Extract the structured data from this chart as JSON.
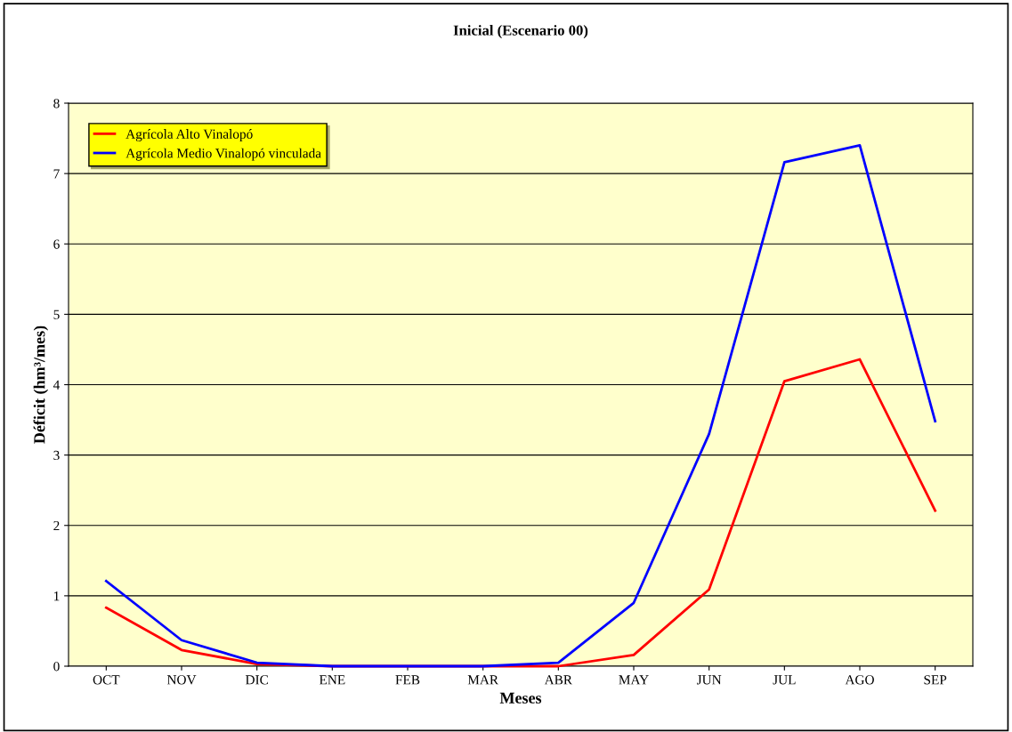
{
  "chart_data": {
    "type": "line",
    "title": "Inicial (Escenario 00)",
    "xlabel": "Meses",
    "ylabel": "Déficit (hm³/mes)",
    "categories": [
      "OCT",
      "NOV",
      "DIC",
      "ENE",
      "FEB",
      "MAR",
      "ABR",
      "MAY",
      "JUN",
      "JUL",
      "AGO",
      "SEP"
    ],
    "series": [
      {
        "name": "Agrícola Alto Vinalopó",
        "color": "#ff0000",
        "values": [
          0.83,
          0.23,
          0.03,
          0,
          0,
          0,
          0,
          0.16,
          1.09,
          4.05,
          4.36,
          2.21
        ]
      },
      {
        "name": "Agrícola Medio Vinalopó vinculada",
        "color": "#0000ff",
        "values": [
          1.21,
          0.37,
          0.05,
          0,
          0,
          0,
          0.05,
          0.9,
          3.3,
          7.16,
          7.4,
          3.48
        ]
      }
    ],
    "ylim": [
      0,
      8
    ],
    "yticks": [
      0,
      1,
      2,
      3,
      4,
      5,
      6,
      7,
      8
    ],
    "grid": "y",
    "legend": "top left",
    "marker": "none",
    "line_style": "solid"
  }
}
